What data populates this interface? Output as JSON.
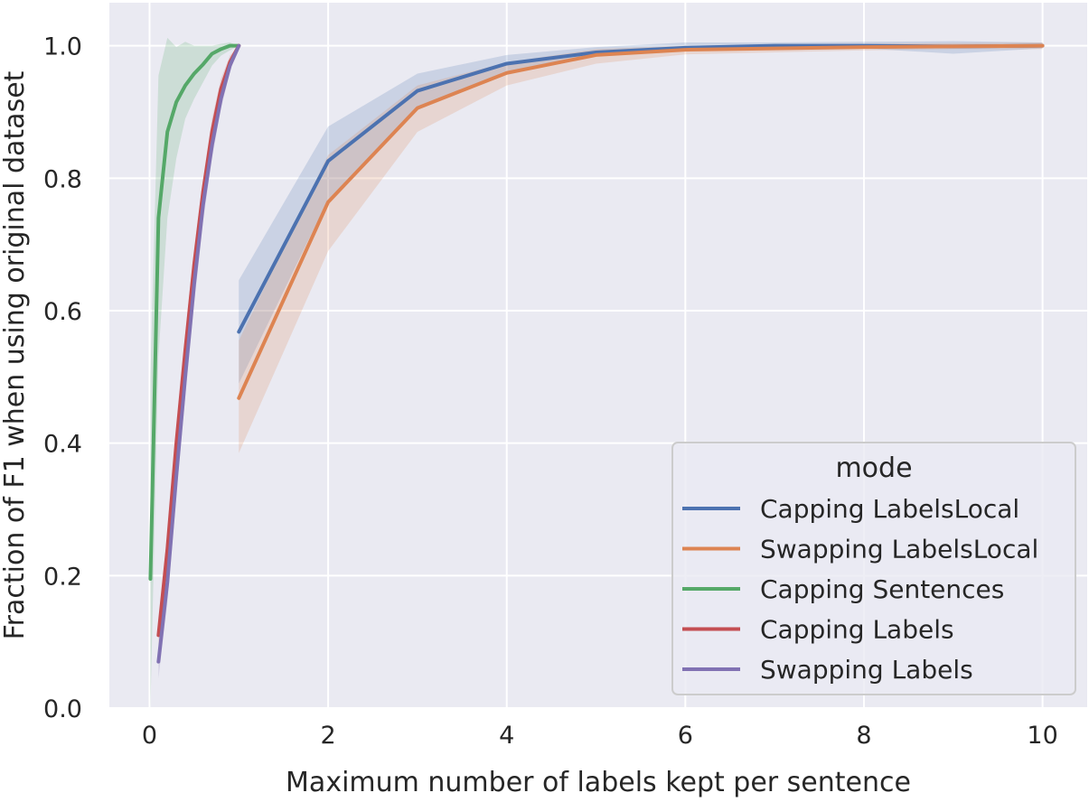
{
  "chart_data": {
    "type": "line",
    "title": "",
    "xlabel": "Maximum number of labels kept per sentence",
    "ylabel": "Fraction of F1 when using original dataset",
    "xlim": [
      -0.45,
      10.5
    ],
    "ylim": [
      0.0,
      1.065
    ],
    "xticks": [
      0,
      2,
      4,
      6,
      8,
      10
    ],
    "xtick_labels": [
      "0",
      "2",
      "4",
      "6",
      "8",
      "10"
    ],
    "yticks": [
      0.0,
      0.2,
      0.4,
      0.6,
      0.8,
      1.0
    ],
    "ytick_labels": [
      "0.0",
      "0.2",
      "0.4",
      "0.6",
      "0.8",
      "1.0"
    ],
    "grid": true,
    "background": "#eaeaf2",
    "legend": {
      "title": "mode",
      "placement": "lower-right"
    },
    "series": [
      {
        "name": "Capping LabelsLocal",
        "color": "#4c72b0",
        "x": [
          1,
          2,
          3,
          4,
          5,
          6,
          7,
          8,
          9,
          10
        ],
        "y": [
          0.568,
          0.826,
          0.932,
          0.973,
          0.99,
          0.997,
          1.0,
          1.0,
          0.999,
          1.0
        ],
        "lower": [
          0.49,
          0.768,
          0.905,
          0.96,
          0.985,
          0.993,
          0.996,
          0.996,
          0.988,
          0.996
        ],
        "upper": [
          0.646,
          0.878,
          0.958,
          0.986,
          0.998,
          1.005,
          1.005,
          1.006,
          1.007,
          1.005
        ]
      },
      {
        "name": "Swapping LabelsLocal",
        "color": "#dd8452",
        "x": [
          1,
          2,
          3,
          4,
          5,
          6,
          7,
          8,
          9,
          10
        ],
        "y": [
          0.468,
          0.764,
          0.906,
          0.959,
          0.986,
          0.994,
          0.996,
          0.998,
          0.999,
          1.0
        ],
        "lower": [
          0.385,
          0.69,
          0.87,
          0.94,
          0.973,
          0.987,
          0.99,
          0.993,
          0.995,
          0.995
        ],
        "upper": [
          0.555,
          0.835,
          0.94,
          0.975,
          0.995,
          1.0,
          1.002,
          1.003,
          1.004,
          1.005
        ]
      },
      {
        "name": "Capping Sentences",
        "color": "#55a868",
        "x": [
          0.01,
          0.1,
          0.2,
          0.3,
          0.4,
          0.5,
          0.6,
          0.7,
          0.8,
          0.9,
          1.0
        ],
        "y": [
          0.195,
          0.74,
          0.87,
          0.915,
          0.94,
          0.958,
          0.972,
          0.988,
          0.995,
          1.0,
          1.0
        ],
        "lower": [
          0.0,
          0.53,
          0.74,
          0.83,
          0.89,
          0.92,
          0.945,
          0.97,
          0.985,
          0.993,
          1.0
        ],
        "upper": [
          0.5,
          0.955,
          1.012,
          0.998,
          1.006,
          1.0,
          1.0,
          1.0,
          1.003,
          1.005,
          1.0
        ]
      },
      {
        "name": "Capping Labels",
        "color": "#c44e52",
        "x": [
          0.1,
          0.2,
          0.3,
          0.4,
          0.5,
          0.6,
          0.7,
          0.8,
          0.9,
          1.0
        ],
        "y": [
          0.11,
          0.24,
          0.4,
          0.54,
          0.67,
          0.78,
          0.87,
          0.935,
          0.975,
          1.0
        ],
        "lower": [
          0.095,
          0.22,
          0.375,
          0.51,
          0.645,
          0.76,
          0.85,
          0.92,
          0.965,
          1.0
        ],
        "upper": [
          0.13,
          0.265,
          0.425,
          0.565,
          0.695,
          0.8,
          0.89,
          0.95,
          0.985,
          1.0
        ]
      },
      {
        "name": "Swapping Labels",
        "color": "#8172b3",
        "x": [
          0.1,
          0.2,
          0.3,
          0.4,
          0.5,
          0.6,
          0.7,
          0.8,
          0.9,
          1.0
        ],
        "y": [
          0.07,
          0.19,
          0.35,
          0.5,
          0.64,
          0.76,
          0.85,
          0.92,
          0.97,
          1.0
        ],
        "lower": [
          0.045,
          0.16,
          0.32,
          0.47,
          0.61,
          0.735,
          0.83,
          0.905,
          0.96,
          1.0
        ],
        "upper": [
          0.09,
          0.215,
          0.375,
          0.525,
          0.665,
          0.785,
          0.87,
          0.935,
          0.98,
          1.0
        ]
      }
    ]
  }
}
